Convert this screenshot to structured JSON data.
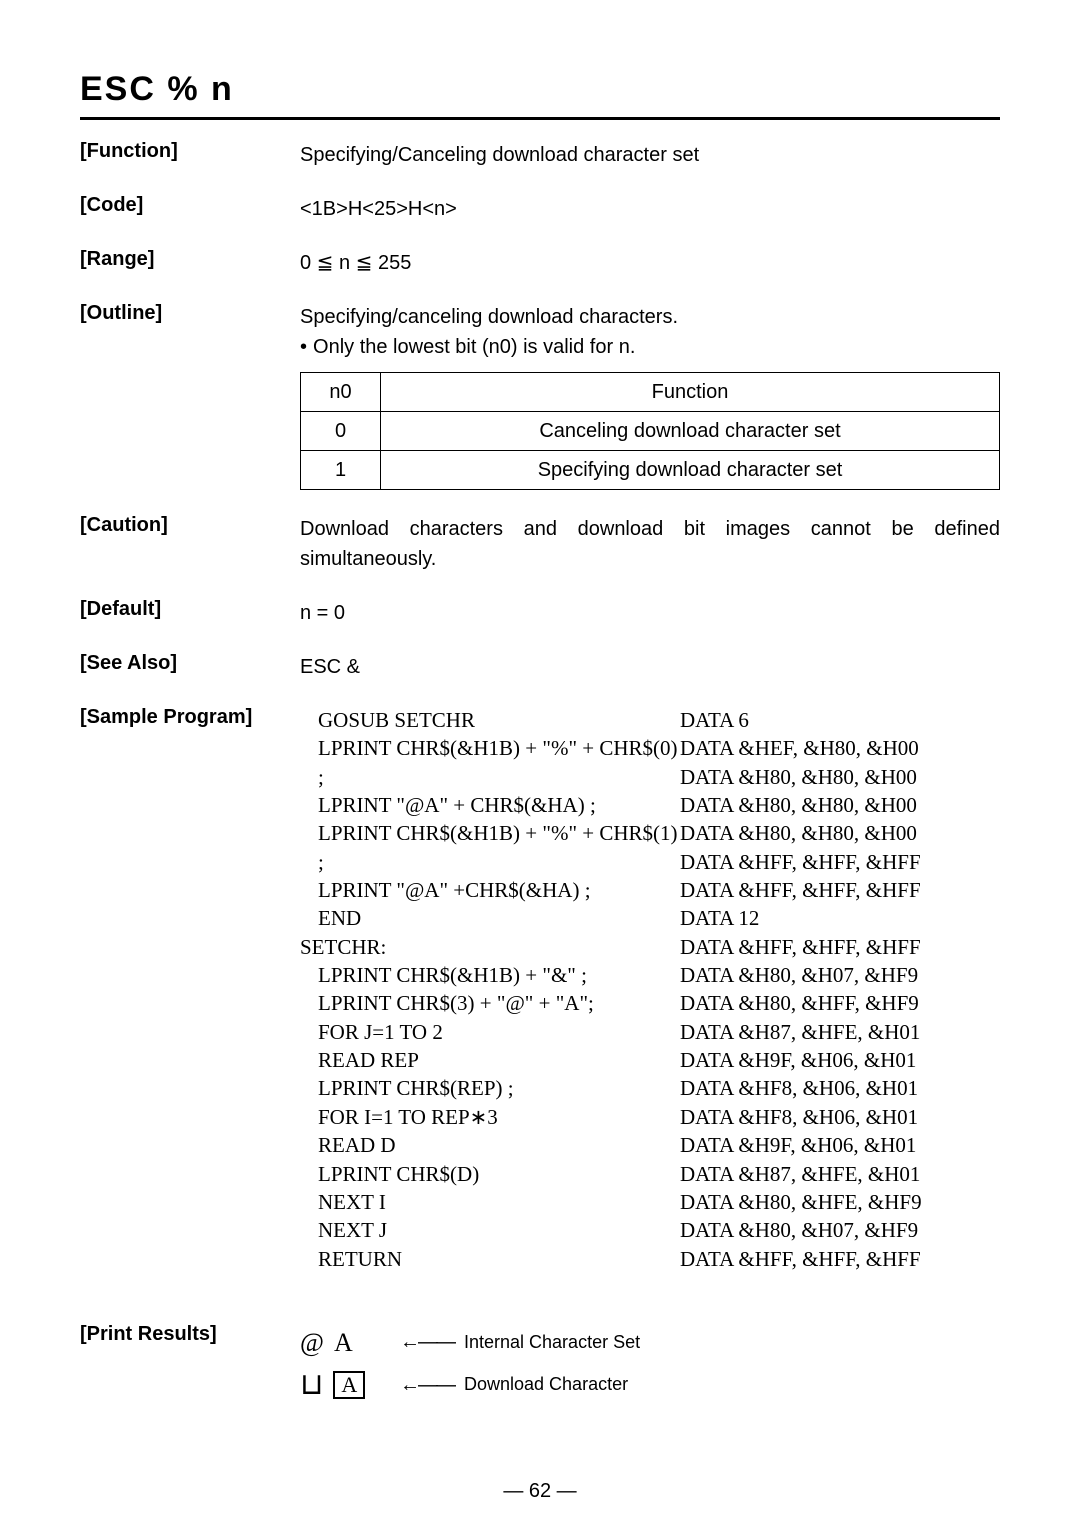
{
  "title": "ESC  %  n",
  "sections": {
    "function": {
      "label": "[Function]",
      "value": "Specifying/Canceling download character set"
    },
    "code": {
      "label": "[Code]",
      "value": "<1B>H<25>H<n>"
    },
    "range": {
      "label": "[Range]",
      "value": "0 ≦ n ≦ 255"
    },
    "outline": {
      "label": "[Outline]",
      "line1": "Specifying/canceling download characters.",
      "line2_bullet": "•",
      "line2_text": "Only the lowest bit (n0) is valid for n.",
      "table": {
        "headers": [
          "n0",
          "Function"
        ],
        "rows": [
          [
            "0",
            "Canceling download character set"
          ],
          [
            "1",
            "Specifying download character set"
          ]
        ]
      }
    },
    "caution": {
      "label": "[Caution]",
      "value": "Download characters and download bit images cannot be defined simultaneously."
    },
    "default": {
      "label": "[Default]",
      "value": "n = 0"
    },
    "seealso": {
      "label": "[See Also]",
      "value": "ESC &"
    },
    "sample": {
      "label": "[Sample Program]",
      "left": [
        "GOSUB SETCHR",
        "LPRINT CHR$(&H1B) + \"%\" + CHR$(0) ;",
        "LPRINT \"@A\" + CHR$(&HA) ;",
        "LPRINT CHR$(&H1B) + \"%\" + CHR$(1) ;",
        "LPRINT \"@A\" +CHR$(&HA) ;",
        "END",
        "SETCHR:",
        "LPRINT CHR$(&H1B) + \"&\" ;",
        "LPRINT CHR$(3) + \"@\" + \"A\";",
        "FOR J=1 TO 2",
        "READ REP",
        "LPRINT CHR$(REP) ;",
        "FOR I=1 TO REP∗3",
        "READ D",
        "LPRINT CHR$(D)",
        "NEXT I",
        "NEXT J",
        "RETURN"
      ],
      "left_indents": [
        1,
        1,
        1,
        1,
        1,
        1,
        0,
        1,
        1,
        1,
        1,
        1,
        1,
        1,
        1,
        1,
        1,
        1
      ],
      "right": [
        "DATA 6",
        "DATA &HEF, &H80, &H00",
        "DATA &H80, &H80, &H00",
        "DATA &H80, &H80, &H00",
        "DATA &H80, &H80, &H00",
        "DATA &HFF, &HFF, &HFF",
        "DATA &HFF, &HFF, &HFF",
        "DATA 12",
        "DATA &HFF, &HFF, &HFF",
        "DATA &H80, &H07, &HF9",
        "DATA &H80, &HFF, &HF9",
        "DATA &H87, &HFE, &H01",
        "DATA &H9F, &H06, &H01",
        "DATA &HF8, &H06, &H01",
        "DATA &HF8, &H06, &H01",
        "DATA &H9F, &H06, &H01",
        "DATA &H87, &HFE, &H01",
        "DATA &H80, &HFE, &HF9",
        "DATA &H80, &H07, &HF9",
        "DATA &HFF, &HFF, &HFF"
      ]
    },
    "printresults": {
      "label": "[Print Results]",
      "row1": {
        "g1": "@",
        "g2": "A",
        "arrow": "←——",
        "text": "Internal Character Set"
      },
      "row2": {
        "g2": "A",
        "arrow": "←——",
        "text": "Download Character"
      }
    }
  },
  "pagenum": "— 62 —"
}
